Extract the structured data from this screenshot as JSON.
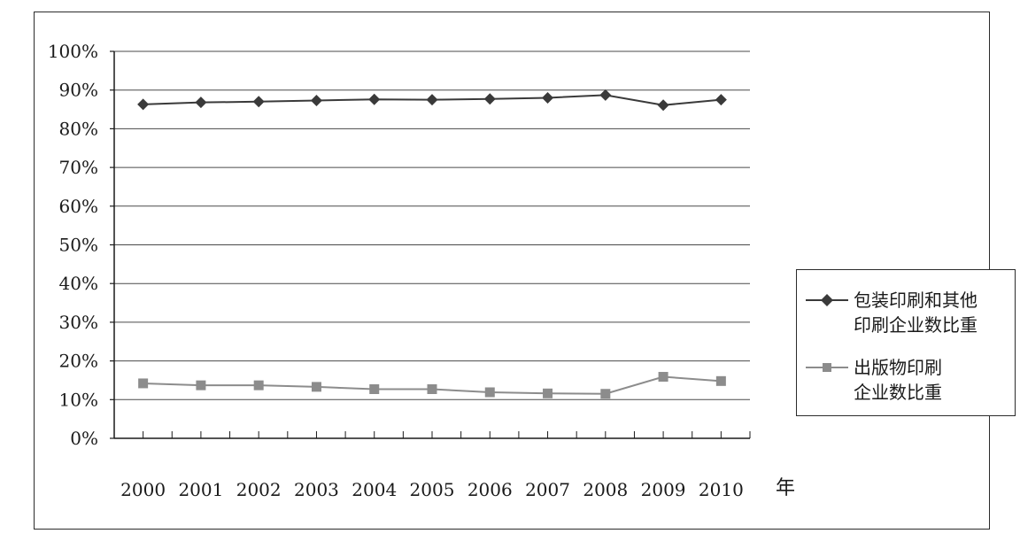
{
  "chart_data": {
    "type": "line",
    "categories": [
      "2000",
      "2001",
      "2002",
      "2003",
      "2004",
      "2005",
      "2006",
      "2007",
      "2008",
      "2009",
      "2010"
    ],
    "xlabel": "年",
    "ylim": [
      0,
      100
    ],
    "yticks": [
      "0%",
      "10%",
      "20%",
      "30%",
      "40%",
      "50%",
      "60%",
      "70%",
      "80%",
      "90%",
      "100%"
    ],
    "grid": true,
    "legend_position": "right",
    "series": [
      {
        "name": "包装印刷和其他\n印刷企业数比重",
        "marker": "diamond",
        "color": "#3a3a3a",
        "values": [
          86.3,
          86.8,
          87.0,
          87.3,
          87.6,
          87.5,
          87.7,
          88.0,
          88.7,
          86.1,
          87.5
        ]
      },
      {
        "name": "出版物印刷\n企业数比重",
        "marker": "square",
        "color": "#8c8c8c",
        "values": [
          14.2,
          13.7,
          13.7,
          13.3,
          12.7,
          12.7,
          11.9,
          11.6,
          11.5,
          15.9,
          14.8
        ]
      }
    ]
  }
}
